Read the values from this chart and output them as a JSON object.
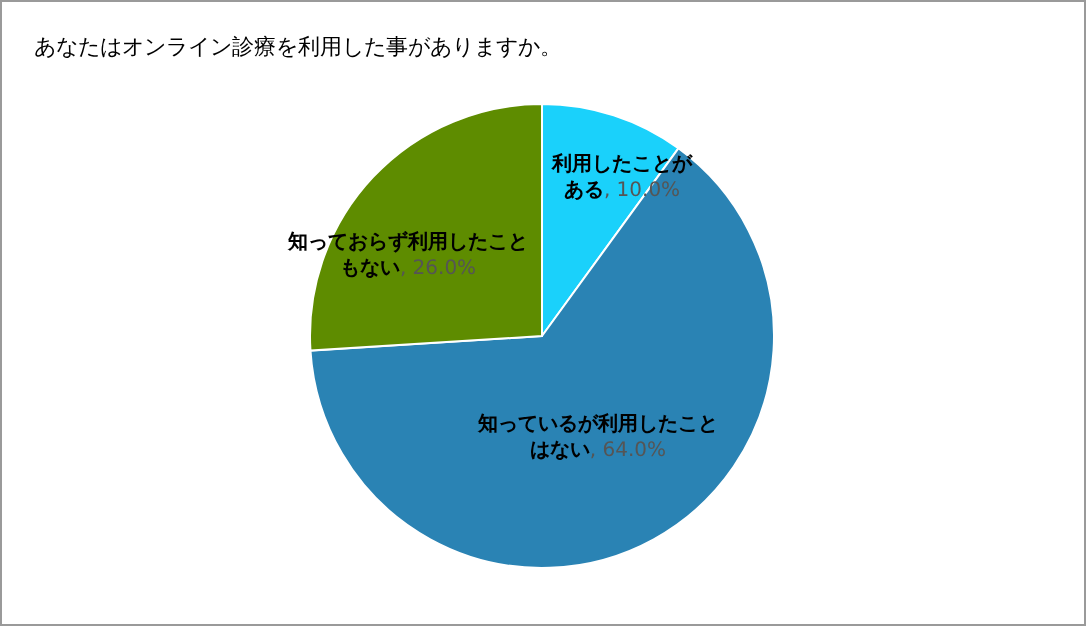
{
  "chart_data": {
    "type": "pie",
    "title": "あなたはオンライン診療を利用した事がありますか。",
    "categories": [
      "利用したことがある",
      "知っているが利用したことはない",
      "知っておらず利用したこともない"
    ],
    "values": [
      10.0,
      64.0,
      26.0
    ],
    "value_labels": [
      ", 10.0%",
      ", 64.0%",
      ", 26.0%"
    ],
    "colors": [
      "#1ad1fb",
      "#2a83b4",
      "#5e8c00"
    ]
  }
}
